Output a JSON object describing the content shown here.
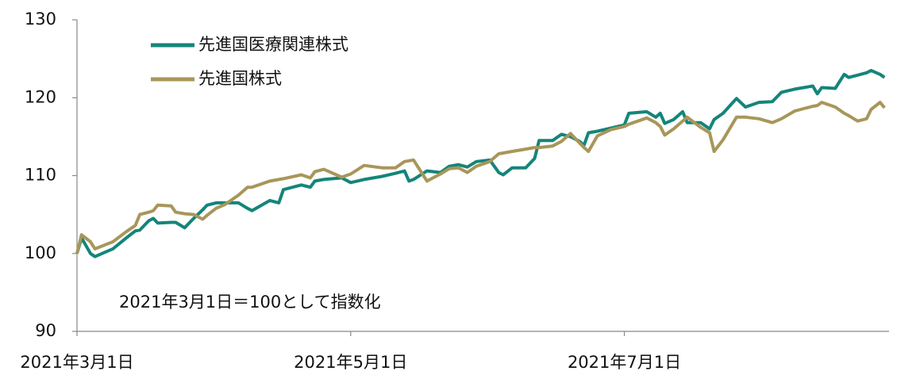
{
  "chart_data": {
    "type": "line",
    "annotation": "2021年3月1日＝100として指数化",
    "x": [
      "2021-03-01",
      "2021-03-02",
      "2021-03-04",
      "2021-03-05",
      "2021-03-09",
      "2021-03-12",
      "2021-03-14",
      "2021-03-15",
      "2021-03-17",
      "2021-03-18",
      "2021-03-19",
      "2021-03-22",
      "2021-03-23",
      "2021-03-25",
      "2021-03-27",
      "2021-03-29",
      "2021-03-30",
      "2021-04-01",
      "2021-04-03",
      "2021-04-06",
      "2021-04-08",
      "2021-04-09",
      "2021-04-13",
      "2021-04-15",
      "2021-04-16",
      "2021-04-20",
      "2021-04-22",
      "2021-04-23",
      "2021-04-25",
      "2021-04-29",
      "2021-05-01",
      "2021-05-04",
      "2021-05-08",
      "2021-05-11",
      "2021-05-13",
      "2021-05-14",
      "2021-05-15",
      "2021-05-18",
      "2021-05-21",
      "2021-05-23",
      "2021-05-25",
      "2021-05-27",
      "2021-05-29",
      "2021-06-01",
      "2021-06-03",
      "2021-06-04",
      "2021-06-06",
      "2021-06-09",
      "2021-06-11",
      "2021-06-12",
      "2021-06-15",
      "2021-06-17",
      "2021-06-19",
      "2021-06-21",
      "2021-06-22",
      "2021-06-23",
      "2021-06-25",
      "2021-06-28",
      "2021-07-01",
      "2021-07-02",
      "2021-07-06",
      "2021-07-08",
      "2021-07-09",
      "2021-07-10",
      "2021-07-12",
      "2021-07-14",
      "2021-07-15",
      "2021-07-18",
      "2021-07-20",
      "2021-07-21",
      "2021-07-23",
      "2021-07-26",
      "2021-07-28",
      "2021-07-31",
      "2021-08-03",
      "2021-08-05",
      "2021-08-08",
      "2021-08-10",
      "2021-08-12",
      "2021-08-13",
      "2021-08-14",
      "2021-08-17",
      "2021-08-19",
      "2021-08-20",
      "2021-08-22",
      "2021-08-24",
      "2021-08-25",
      "2021-08-27",
      "2021-08-28"
    ],
    "series": [
      {
        "name": "先進国医療関連株式",
        "color": "#14857a",
        "values": [
          100,
          102,
          100,
          99.6,
          100.6,
          102,
          102.9,
          103,
          104.2,
          104.5,
          103.9,
          104,
          104,
          103.3,
          104.5,
          105.6,
          106.2,
          106.5,
          106.5,
          106.5,
          105.8,
          105.5,
          106.8,
          106.5,
          108.2,
          108.8,
          108.5,
          109.3,
          109.5,
          109.7,
          109.1,
          109.5,
          109.9,
          110.3,
          110.6,
          109.3,
          109.5,
          110.6,
          110.4,
          111.2,
          111.4,
          111.1,
          111.8,
          112.0,
          110.4,
          110.1,
          111.0,
          111.0,
          112.2,
          114.5,
          114.5,
          115.3,
          115.0,
          114.4,
          113.9,
          115.5,
          115.7,
          116.1,
          116.5,
          118.0,
          118.2,
          117.5,
          118.0,
          116.7,
          117.2,
          118.2,
          116.8,
          116.8,
          116.0,
          117.2,
          118.0,
          119.9,
          118.8,
          119.4,
          119.5,
          120.7,
          121.1,
          121.3,
          121.5,
          120.5,
          121.3,
          121.2,
          123.0,
          122.6,
          122.9,
          123.2,
          123.5,
          123.0,
          122.6
        ]
      },
      {
        "name": "先進国株式",
        "color": "#a8965a",
        "values": [
          100,
          102.4,
          101.5,
          100.6,
          101.5,
          102.8,
          103.6,
          105,
          105.3,
          105.5,
          106.2,
          106.1,
          105.3,
          105.1,
          105,
          104.4,
          104.9,
          105.8,
          106.3,
          107.5,
          108.5,
          108.5,
          109.3,
          109.5,
          109.6,
          110.1,
          109.7,
          110.5,
          110.8,
          109.8,
          110.2,
          111.3,
          111.0,
          111.0,
          111.8,
          111.9,
          112.0,
          109.3,
          110.2,
          110.9,
          111.0,
          110.4,
          111.2,
          111.8,
          112.8,
          112.9,
          113.1,
          113.4,
          113.6,
          113.6,
          113.8,
          114.4,
          115.4,
          114.2,
          113.6,
          113.1,
          115.1,
          115.9,
          116.3,
          116.6,
          117.4,
          116.8,
          116.3,
          115.2,
          116.0,
          117.0,
          117.5,
          116.2,
          115.5,
          113.1,
          114.6,
          117.5,
          117.5,
          117.3,
          116.8,
          117.3,
          118.3,
          118.6,
          118.9,
          119.0,
          119.4,
          118.8,
          118.0,
          117.7,
          117.0,
          117.3,
          118.5,
          119.4,
          118.7
        ]
      }
    ],
    "xlim": [
      "2021-03-01",
      "2021-08-29"
    ],
    "xticks": [
      {
        "value": "2021-03-01",
        "label": "2021年3月1日"
      },
      {
        "value": "2021-05-01",
        "label": "2021年5月1日"
      },
      {
        "value": "2021-07-01",
        "label": "2021年7月1日"
      }
    ],
    "ylim": [
      90,
      130
    ],
    "yticks": [
      90,
      100,
      110,
      120,
      130
    ],
    "grid": false,
    "legend": "upper left"
  }
}
